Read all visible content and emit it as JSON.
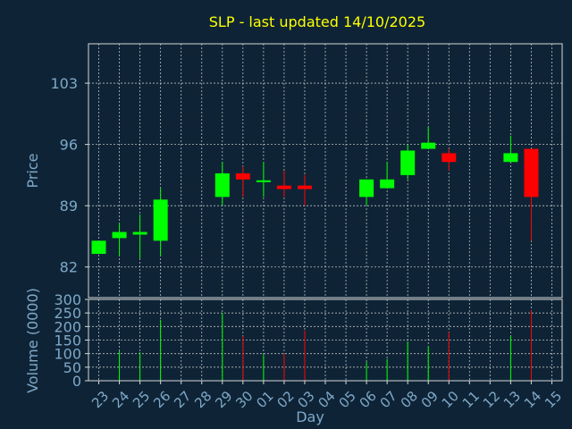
{
  "chart_data": {
    "type": "candlestick",
    "title": "SLP - last updated 14/10/2025",
    "xlabel": "Day",
    "price_panel": {
      "ylabel": "Price",
      "yticks": [
        82,
        89,
        96,
        103
      ],
      "ylim": [
        78.5,
        107.5
      ],
      "grid": true
    },
    "volume_panel": {
      "ylabel": "Volume (0000)",
      "yticks": [
        0,
        50,
        100,
        150,
        200,
        250,
        300
      ],
      "ylim": [
        0,
        300
      ],
      "grid": true
    },
    "x_labels": [
      "23",
      "24",
      "25",
      "26",
      "27",
      "28",
      "29",
      "30",
      "01",
      "02",
      "03",
      "04",
      "05",
      "06",
      "07",
      "08",
      "09",
      "10",
      "11",
      "12",
      "13",
      "14",
      "15"
    ],
    "candles": [
      {
        "day": "23",
        "open": 83.5,
        "close": 85.0,
        "high": 85.0,
        "low": 83.5,
        "volume": 0
      },
      {
        "day": "24",
        "open": 85.3,
        "close": 86.0,
        "high": 87.0,
        "low": 83.3,
        "volume": 110
      },
      {
        "day": "25",
        "open": 85.7,
        "close": 86.0,
        "high": 88.0,
        "low": 83.0,
        "volume": 105
      },
      {
        "day": "26",
        "open": 85.0,
        "close": 89.7,
        "high": 91.0,
        "low": 83.3,
        "volume": 225
      },
      {
        "day": "29",
        "open": 90.0,
        "close": 92.7,
        "high": 94.0,
        "low": 89.0,
        "volume": 250
      },
      {
        "day": "30",
        "open": 92.7,
        "close": 92.0,
        "high": 93.5,
        "low": 90.0,
        "volume": 165
      },
      {
        "day": "01",
        "open": 91.7,
        "close": 91.9,
        "high": 94.0,
        "low": 90.0,
        "volume": 95
      },
      {
        "day": "02",
        "open": 91.3,
        "close": 90.9,
        "high": 93.0,
        "low": 90.0,
        "volume": 100
      },
      {
        "day": "03",
        "open": 91.3,
        "close": 90.9,
        "high": 92.5,
        "low": 89.0,
        "volume": 185
      },
      {
        "day": "06",
        "open": 90.0,
        "close": 92.0,
        "high": 92.0,
        "low": 89.0,
        "volume": 70
      },
      {
        "day": "07",
        "open": 91.0,
        "close": 92.0,
        "high": 94.0,
        "low": 91.0,
        "volume": 80
      },
      {
        "day": "08",
        "open": 92.5,
        "close": 95.3,
        "high": 96.0,
        "low": 92.0,
        "volume": 145
      },
      {
        "day": "09",
        "open": 95.5,
        "close": 96.2,
        "high": 98.0,
        "low": 95.5,
        "volume": 125
      },
      {
        "day": "10",
        "open": 95.0,
        "close": 94.0,
        "high": 95.5,
        "low": 93.0,
        "volume": 180
      },
      {
        "day": "13",
        "open": 94.0,
        "close": 95.0,
        "high": 97.0,
        "low": 94.0,
        "volume": 165
      },
      {
        "day": "14",
        "open": 95.5,
        "close": 90.0,
        "high": 95.5,
        "low": 85.0,
        "volume": 260
      }
    ],
    "colors": {
      "background": "#0e2436",
      "up": "#00ff00",
      "down": "#ff0000",
      "title": "#ffff00",
      "axis_text": "#7fa8c8",
      "grid": "#d8d8d8"
    }
  }
}
